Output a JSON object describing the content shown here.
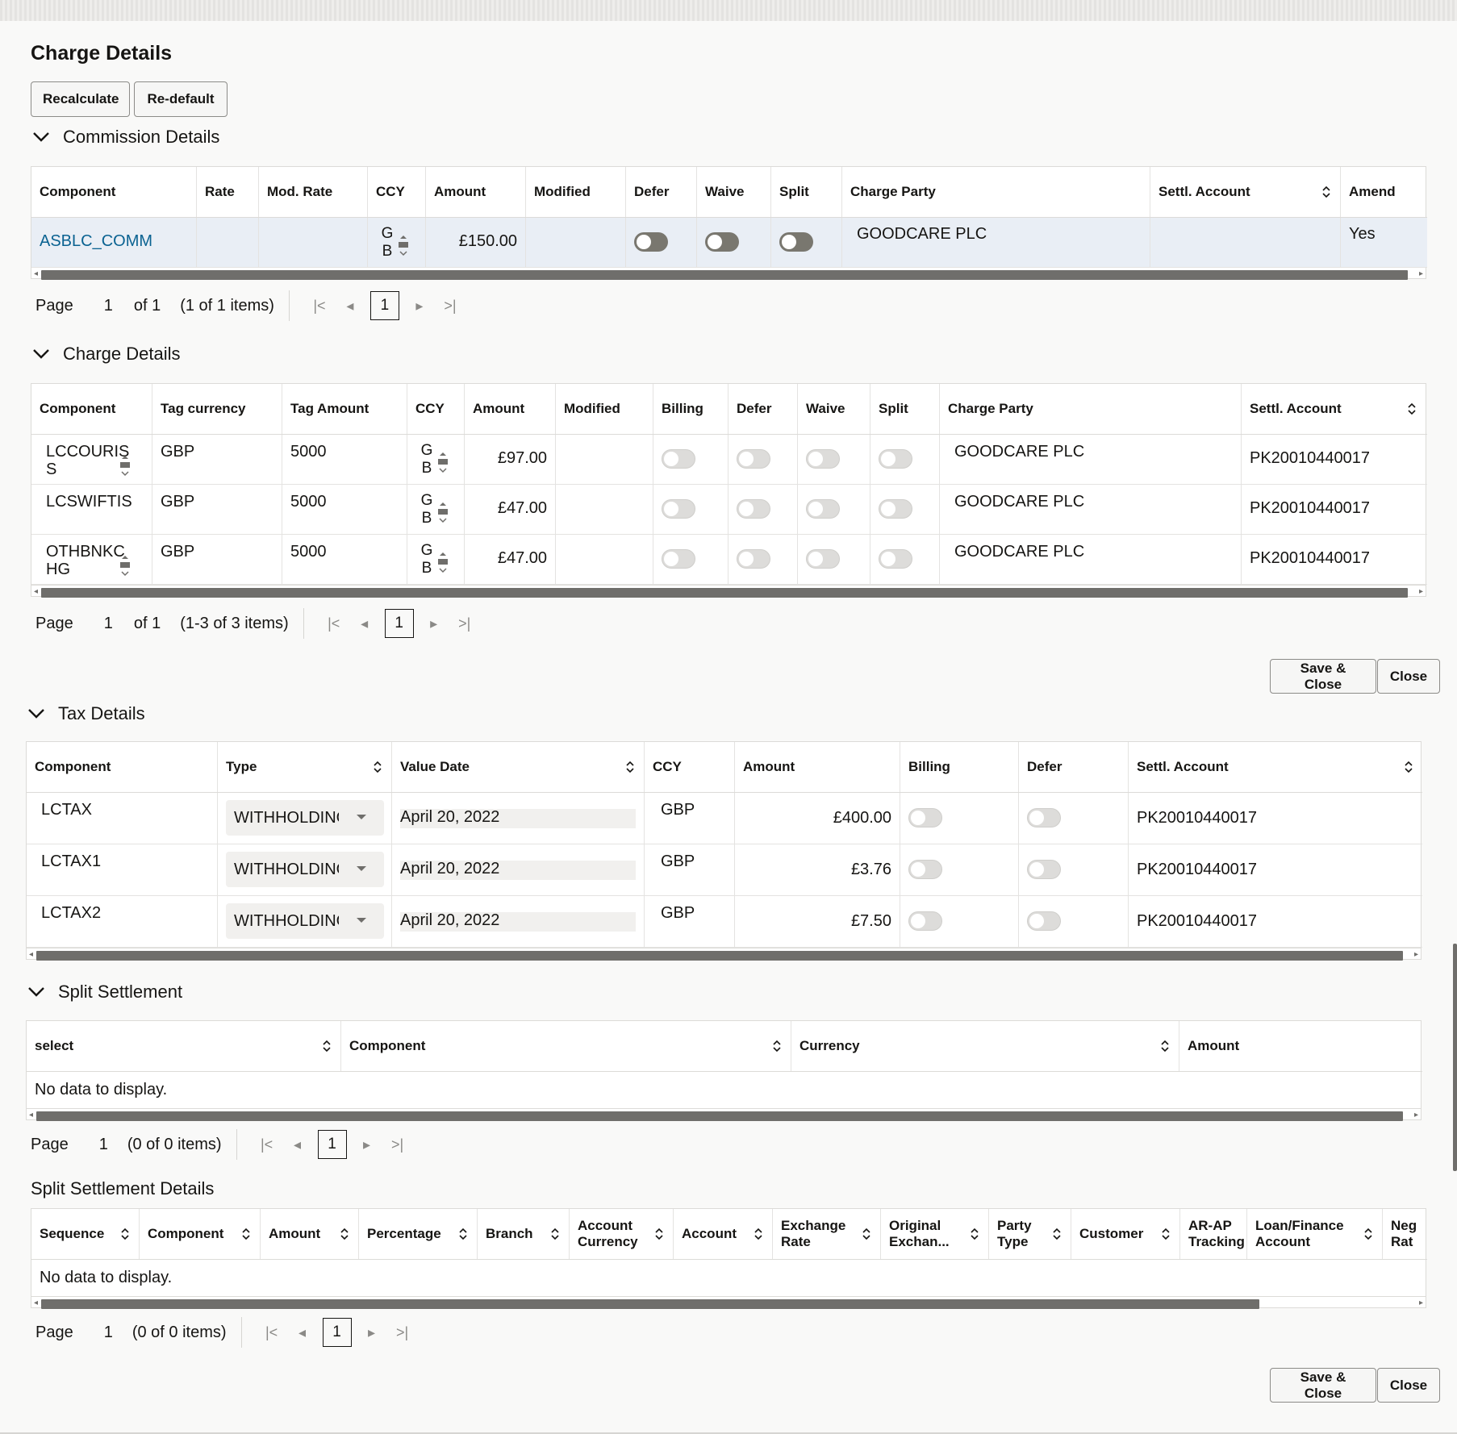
{
  "page": {
    "title": "Charge Details"
  },
  "toolbar": {
    "recalculate": "Recalculate",
    "redefault": "Re-default"
  },
  "commission": {
    "title": "Commission Details",
    "headers": [
      "Component",
      "Rate",
      "Mod. Rate",
      "CCY",
      "Amount",
      "Modified",
      "Defer",
      "Waive",
      "Split",
      "Charge Party",
      "Settl. Account",
      "Amend"
    ],
    "row": {
      "component": "ASBLC_COMM",
      "rate": "",
      "mod_rate": "",
      "ccy_top": "G",
      "ccy_bottom": "B",
      "amount": "£150.00",
      "modified": "",
      "charge_party": "GOODCARE PLC",
      "settl_account": "",
      "amend": "Yes",
      "defer": false,
      "waive": false,
      "split": false
    },
    "pager": {
      "page_label": "Page",
      "page": "1",
      "of": "of 1",
      "items": "(1 of 1 items)",
      "current": "1"
    }
  },
  "charges": {
    "title": "Charge Details",
    "headers": [
      "Component",
      "Tag currency",
      "Tag Amount",
      "CCY",
      "Amount",
      "Modified",
      "Billing",
      "Defer",
      "Waive",
      "Split",
      "Charge Party",
      "Settl. Account"
    ],
    "rows": [
      {
        "component_line1": "LCCOURIS",
        "component_line2": "S",
        "tag_currency": "GBP",
        "tag_amount": "5000",
        "ccy_top": "G",
        "ccy_bottom": "B",
        "amount": "£97.00",
        "charge_party": "GOODCARE PLC",
        "settl_account": "PK20010440017"
      },
      {
        "component_line1": "LCSWIFTIS",
        "component_line2": "",
        "tag_currency": "GBP",
        "tag_amount": "5000",
        "ccy_top": "G",
        "ccy_bottom": "B",
        "amount": "£47.00",
        "charge_party": "GOODCARE PLC",
        "settl_account": "PK20010440017"
      },
      {
        "component_line1": "OTHBNKC",
        "component_line2": "HG",
        "tag_currency": "GBP",
        "tag_amount": "5000",
        "ccy_top": "G",
        "ccy_bottom": "B",
        "amount": "£47.00",
        "charge_party": "GOODCARE PLC",
        "settl_account": "PK20010440017"
      }
    ],
    "pager": {
      "page_label": "Page",
      "page": "1",
      "of": "of 1",
      "items": "(1-3 of 3 items)",
      "current": "1"
    }
  },
  "actions": {
    "save_close": "Save & Close",
    "close": "Close"
  },
  "tax": {
    "title": "Tax Details",
    "headers": [
      "Component",
      "Type",
      "Value Date",
      "CCY",
      "Amount",
      "Billing",
      "Defer",
      "Settl. Account"
    ],
    "rows": [
      {
        "component": "LCTAX",
        "type": "WITHHOLDING",
        "value_date": "April 20, 2022",
        "ccy": "GBP",
        "amount": "£400.00",
        "settl_account": "PK20010440017"
      },
      {
        "component": "LCTAX1",
        "type": "WITHHOLDING",
        "value_date": "April 20, 2022",
        "ccy": "GBP",
        "amount": "£3.76",
        "settl_account": "PK20010440017"
      },
      {
        "component": "LCTAX2",
        "type": "WITHHOLDING",
        "value_date": "April 20, 2022",
        "ccy": "GBP",
        "amount": "£7.50",
        "settl_account": "PK20010440017"
      }
    ]
  },
  "split": {
    "title": "Split Settlement",
    "headers": [
      "select",
      "Component",
      "Currency",
      "Amount"
    ],
    "empty": "No data to display.",
    "pager": {
      "page_label": "Page",
      "page": "1",
      "items": "(0 of 0 items)",
      "current": "1"
    }
  },
  "split_details": {
    "title": "Split Settlement Details",
    "headers": [
      "Sequence",
      "Component",
      "Amount",
      "Percentage",
      "Branch",
      "Account Currency",
      "Account",
      "Exchange Rate",
      "Original Exchan...",
      "Party Type",
      "Customer",
      "AR-AP Tracking",
      "Loan/Finance Account",
      "Neg Rat"
    ],
    "empty": "No data to display.",
    "pager": {
      "page_label": "Page",
      "page": "1",
      "items": "(0 of 0 items)",
      "current": "1"
    }
  }
}
